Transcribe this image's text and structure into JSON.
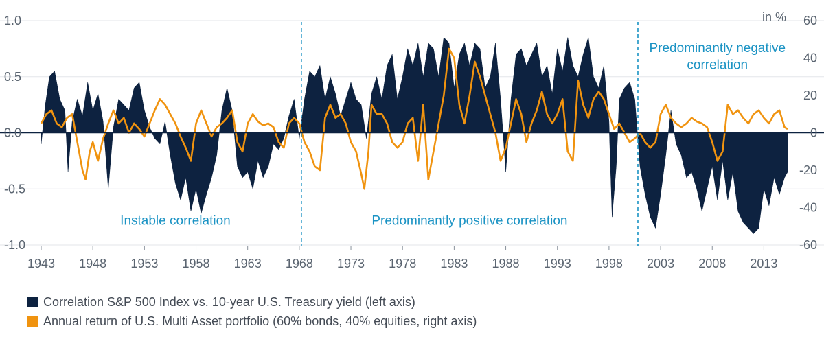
{
  "chart_data": {
    "type": "area",
    "x_range": [
      1943,
      2015.5
    ],
    "ylim_left": [
      -1.0,
      1.0
    ],
    "ylim_right": [
      -60,
      60
    ],
    "left_ticks": [
      "1.0",
      "0.5",
      "0.0",
      "-0.5",
      "-1.0"
    ],
    "left_tick_values": [
      1.0,
      0.5,
      0.0,
      -0.5,
      -1.0
    ],
    "right_ticks": [
      "60",
      "40",
      "20",
      "0",
      "-20",
      "-40",
      "-60"
    ],
    "right_tick_values": [
      60,
      40,
      20,
      0,
      -20,
      -40,
      -60
    ],
    "right_unit": "in %",
    "x_ticks": [
      "1943",
      "1948",
      "1953",
      "1958",
      "1963",
      "1968",
      "1973",
      "1978",
      "1983",
      "1988",
      "1993",
      "1998",
      "2003",
      "2008",
      "2013"
    ],
    "x_tick_values": [
      1943,
      1948,
      1953,
      1958,
      1963,
      1968,
      1973,
      1978,
      1983,
      1988,
      1993,
      1998,
      2003,
      2008,
      2013
    ],
    "grid": true,
    "dividers": [
      1968.2,
      2000.8
    ],
    "annotations": [
      {
        "text": "Instable correlation",
        "x": 1956.0,
        "y": -0.82
      },
      {
        "text": "Predominantly positive correlation",
        "x": 1984.5,
        "y": -0.82
      },
      {
        "text": "Predominantly negative",
        "x": 2008.5,
        "y": 0.72
      },
      {
        "text": "correlation",
        "x": 2008.5,
        "y": 0.57
      }
    ],
    "series": [
      {
        "name": "Correlation S&P 500 Index vs. 10-year U.S. Treasury yield (left axis)",
        "axis": "left",
        "color": "#0d2240",
        "style": "area",
        "points": [
          [
            1943,
            -0.1
          ],
          [
            1943.4,
            0.25
          ],
          [
            1943.8,
            0.5
          ],
          [
            1944.3,
            0.55
          ],
          [
            1944.8,
            0.3
          ],
          [
            1945.3,
            0.2
          ],
          [
            1945.6,
            -0.35
          ],
          [
            1946,
            0.1
          ],
          [
            1946.5,
            0.3
          ],
          [
            1947,
            0.15
          ],
          [
            1947.5,
            0.45
          ],
          [
            1948,
            0.2
          ],
          [
            1948.5,
            0.35
          ],
          [
            1949,
            0.1
          ],
          [
            1949.5,
            -0.5
          ],
          [
            1950,
            0.05
          ],
          [
            1950.5,
            0.3
          ],
          [
            1951,
            0.25
          ],
          [
            1951.5,
            0.2
          ],
          [
            1952,
            0.4
          ],
          [
            1952.5,
            0.45
          ],
          [
            1953,
            0.2
          ],
          [
            1953.5,
            0.05
          ],
          [
            1954,
            -0.05
          ],
          [
            1954.5,
            -0.1
          ],
          [
            1955,
            0.1
          ],
          [
            1955.5,
            -0.2
          ],
          [
            1956,
            -0.45
          ],
          [
            1956.5,
            -0.6
          ],
          [
            1957,
            -0.4
          ],
          [
            1957.5,
            -0.7
          ],
          [
            1958,
            -0.5
          ],
          [
            1958.5,
            -0.72
          ],
          [
            1959,
            -0.55
          ],
          [
            1959.5,
            -0.4
          ],
          [
            1960,
            -0.2
          ],
          [
            1960.5,
            0.2
          ],
          [
            1961,
            0.4
          ],
          [
            1961.5,
            0.2
          ],
          [
            1962,
            -0.3
          ],
          [
            1962.5,
            -0.4
          ],
          [
            1963,
            -0.35
          ],
          [
            1963.5,
            -0.5
          ],
          [
            1964,
            -0.25
          ],
          [
            1964.5,
            -0.4
          ],
          [
            1965,
            -0.3
          ],
          [
            1965.5,
            -0.1
          ],
          [
            1966,
            -0.15
          ],
          [
            1966.5,
            -0.05
          ],
          [
            1967,
            0.15
          ],
          [
            1967.5,
            0.3
          ],
          [
            1968,
            -0.05
          ],
          [
            1968.5,
            0.3
          ],
          [
            1969,
            0.55
          ],
          [
            1969.5,
            0.5
          ],
          [
            1970,
            0.6
          ],
          [
            1970.5,
            0.3
          ],
          [
            1971,
            0.5
          ],
          [
            1971.5,
            0.35
          ],
          [
            1972,
            0.15
          ],
          [
            1972.5,
            0.3
          ],
          [
            1973,
            0.45
          ],
          [
            1973.5,
            0.3
          ],
          [
            1974,
            0.25
          ],
          [
            1974.5,
            -0.05
          ],
          [
            1975,
            0.35
          ],
          [
            1975.5,
            0.5
          ],
          [
            1976,
            0.3
          ],
          [
            1976.5,
            0.6
          ],
          [
            1977,
            0.7
          ],
          [
            1977.5,
            0.3
          ],
          [
            1978,
            0.5
          ],
          [
            1978.5,
            0.75
          ],
          [
            1979,
            0.6
          ],
          [
            1979.5,
            0.8
          ],
          [
            1980,
            0.5
          ],
          [
            1980.5,
            0.8
          ],
          [
            1981,
            0.75
          ],
          [
            1981.5,
            0.5
          ],
          [
            1982,
            0.85
          ],
          [
            1982.5,
            0.8
          ],
          [
            1983,
            0.4
          ],
          [
            1983.5,
            0.7
          ],
          [
            1984,
            0.8
          ],
          [
            1984.5,
            0.6
          ],
          [
            1985,
            0.8
          ],
          [
            1985.5,
            0.75
          ],
          [
            1986,
            0.4
          ],
          [
            1986.5,
            0.5
          ],
          [
            1987,
            0.8
          ],
          [
            1987.5,
            0.3
          ],
          [
            1988,
            -0.35
          ],
          [
            1988.5,
            0.3
          ],
          [
            1989,
            0.7
          ],
          [
            1989.5,
            0.75
          ],
          [
            1990,
            0.6
          ],
          [
            1990.5,
            0.7
          ],
          [
            1991,
            0.8
          ],
          [
            1991.5,
            0.5
          ],
          [
            1992,
            0.6
          ],
          [
            1992.5,
            0.35
          ],
          [
            1993,
            0.75
          ],
          [
            1993.5,
            0.55
          ],
          [
            1994,
            0.85
          ],
          [
            1994.5,
            0.6
          ],
          [
            1995,
            0.5
          ],
          [
            1995.5,
            0.7
          ],
          [
            1996,
            0.85
          ],
          [
            1996.5,
            0.5
          ],
          [
            1997,
            0.4
          ],
          [
            1997.5,
            0.6
          ],
          [
            1998,
            0.1
          ],
          [
            1998.3,
            -0.75
          ],
          [
            1998.7,
            -0.3
          ],
          [
            1999,
            0.3
          ],
          [
            1999.5,
            0.4
          ],
          [
            2000,
            0.45
          ],
          [
            2000.5,
            0.3
          ],
          [
            2001,
            -0.3
          ],
          [
            2001.5,
            -0.55
          ],
          [
            2002,
            -0.75
          ],
          [
            2002.5,
            -0.85
          ],
          [
            2003,
            -0.55
          ],
          [
            2003.5,
            -0.2
          ],
          [
            2004,
            0.2
          ],
          [
            2004.5,
            -0.1
          ],
          [
            2005,
            -0.2
          ],
          [
            2005.5,
            -0.4
          ],
          [
            2006,
            -0.35
          ],
          [
            2006.5,
            -0.5
          ],
          [
            2007,
            -0.7
          ],
          [
            2007.5,
            -0.5
          ],
          [
            2008,
            -0.3
          ],
          [
            2008.5,
            -0.6
          ],
          [
            2009,
            -0.25
          ],
          [
            2009.5,
            -0.6
          ],
          [
            2010,
            -0.35
          ],
          [
            2010.5,
            -0.7
          ],
          [
            2011,
            -0.8
          ],
          [
            2011.5,
            -0.85
          ],
          [
            2012,
            -0.9
          ],
          [
            2012.5,
            -0.85
          ],
          [
            2013,
            -0.5
          ],
          [
            2013.5,
            -0.65
          ],
          [
            2014,
            -0.4
          ],
          [
            2014.5,
            -0.55
          ],
          [
            2015,
            -0.4
          ],
          [
            2015.3,
            -0.35
          ]
        ]
      },
      {
        "name": "Annual return of U.S. Multi Asset portfolio (60% bonds, 40% equities, right axis)",
        "axis": "right",
        "color": "#f0930f",
        "style": "line",
        "points": [
          [
            1943,
            5
          ],
          [
            1943.5,
            10
          ],
          [
            1944,
            12
          ],
          [
            1944.5,
            5
          ],
          [
            1945,
            3
          ],
          [
            1945.5,
            8
          ],
          [
            1946,
            10
          ],
          [
            1946.5,
            -5
          ],
          [
            1947,
            -20
          ],
          [
            1947.3,
            -25
          ],
          [
            1947.7,
            -10
          ],
          [
            1948,
            -5
          ],
          [
            1948.5,
            -15
          ],
          [
            1949,
            -3
          ],
          [
            1949.5,
            5
          ],
          [
            1950,
            12
          ],
          [
            1950.5,
            5
          ],
          [
            1951,
            8
          ],
          [
            1951.5,
            0
          ],
          [
            1952,
            5
          ],
          [
            1952.5,
            2
          ],
          [
            1953,
            -2
          ],
          [
            1953.5,
            5
          ],
          [
            1954,
            12
          ],
          [
            1954.5,
            18
          ],
          [
            1955,
            15
          ],
          [
            1955.5,
            10
          ],
          [
            1956,
            5
          ],
          [
            1956.5,
            -2
          ],
          [
            1957,
            -8
          ],
          [
            1957.5,
            -15
          ],
          [
            1958,
            5
          ],
          [
            1958.5,
            12
          ],
          [
            1959,
            5
          ],
          [
            1959.5,
            -2
          ],
          [
            1960,
            3
          ],
          [
            1960.5,
            5
          ],
          [
            1961,
            8
          ],
          [
            1961.5,
            12
          ],
          [
            1962,
            -5
          ],
          [
            1962.5,
            -10
          ],
          [
            1963,
            5
          ],
          [
            1963.5,
            10
          ],
          [
            1964,
            6
          ],
          [
            1964.5,
            4
          ],
          [
            1965,
            5
          ],
          [
            1965.5,
            3
          ],
          [
            1966,
            -5
          ],
          [
            1966.5,
            -8
          ],
          [
            1967,
            5
          ],
          [
            1967.5,
            8
          ],
          [
            1968,
            5
          ],
          [
            1968.5,
            -5
          ],
          [
            1969,
            -10
          ],
          [
            1969.5,
            -18
          ],
          [
            1970,
            -20
          ],
          [
            1970.5,
            8
          ],
          [
            1971,
            15
          ],
          [
            1971.5,
            8
          ],
          [
            1972,
            10
          ],
          [
            1972.5,
            5
          ],
          [
            1973,
            -5
          ],
          [
            1973.5,
            -10
          ],
          [
            1974,
            -22
          ],
          [
            1974.3,
            -30
          ],
          [
            1974.7,
            -10
          ],
          [
            1975,
            15
          ],
          [
            1975.5,
            10
          ],
          [
            1976,
            10
          ],
          [
            1976.5,
            5
          ],
          [
            1977,
            -5
          ],
          [
            1977.5,
            -8
          ],
          [
            1978,
            -5
          ],
          [
            1978.5,
            5
          ],
          [
            1979,
            8
          ],
          [
            1979.5,
            -15
          ],
          [
            1980,
            15
          ],
          [
            1980.5,
            -25
          ],
          [
            1981,
            -10
          ],
          [
            1981.5,
            5
          ],
          [
            1982,
            20
          ],
          [
            1982.5,
            45
          ],
          [
            1983,
            40
          ],
          [
            1983.5,
            15
          ],
          [
            1984,
            5
          ],
          [
            1984.5,
            20
          ],
          [
            1985,
            38
          ],
          [
            1985.5,
            30
          ],
          [
            1986,
            20
          ],
          [
            1986.5,
            10
          ],
          [
            1987,
            0
          ],
          [
            1987.5,
            -15
          ],
          [
            1988,
            -8
          ],
          [
            1988.5,
            5
          ],
          [
            1989,
            18
          ],
          [
            1989.5,
            10
          ],
          [
            1990,
            -5
          ],
          [
            1990.5,
            5
          ],
          [
            1991,
            12
          ],
          [
            1991.5,
            22
          ],
          [
            1992,
            10
          ],
          [
            1992.5,
            5
          ],
          [
            1993,
            10
          ],
          [
            1993.5,
            18
          ],
          [
            1994,
            -10
          ],
          [
            1994.5,
            -15
          ],
          [
            1995,
            28
          ],
          [
            1995.5,
            15
          ],
          [
            1996,
            8
          ],
          [
            1996.5,
            18
          ],
          [
            1997,
            22
          ],
          [
            1997.5,
            18
          ],
          [
            1998,
            10
          ],
          [
            1998.5,
            2
          ],
          [
            1999,
            5
          ],
          [
            1999.5,
            0
          ],
          [
            2000,
            -5
          ],
          [
            2000.5,
            -3
          ],
          [
            2001,
            0
          ],
          [
            2001.5,
            -5
          ],
          [
            2002,
            -8
          ],
          [
            2002.5,
            -5
          ],
          [
            2003,
            10
          ],
          [
            2003.5,
            15
          ],
          [
            2004,
            8
          ],
          [
            2004.5,
            5
          ],
          [
            2005,
            3
          ],
          [
            2005.5,
            5
          ],
          [
            2006,
            8
          ],
          [
            2006.5,
            6
          ],
          [
            2007,
            5
          ],
          [
            2007.5,
            3
          ],
          [
            2008,
            -5
          ],
          [
            2008.5,
            -15
          ],
          [
            2009,
            -10
          ],
          [
            2009.5,
            15
          ],
          [
            2010,
            10
          ],
          [
            2010.5,
            12
          ],
          [
            2011,
            8
          ],
          [
            2011.5,
            5
          ],
          [
            2012,
            10
          ],
          [
            2012.5,
            12
          ],
          [
            2013,
            8
          ],
          [
            2013.5,
            5
          ],
          [
            2014,
            10
          ],
          [
            2014.5,
            12
          ],
          [
            2015,
            3
          ],
          [
            2015.3,
            2
          ]
        ]
      }
    ]
  }
}
